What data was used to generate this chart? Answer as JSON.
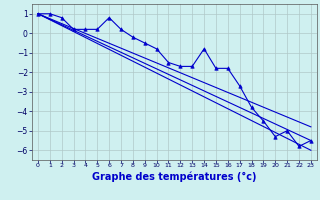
{
  "title": "Graphe des températures (°c)",
  "bg_color": "#cff0f0",
  "grid_color": "#b0c8c8",
  "line_color": "#0000cc",
  "x_values": [
    0,
    1,
    2,
    3,
    4,
    5,
    6,
    7,
    8,
    9,
    10,
    11,
    12,
    13,
    14,
    15,
    16,
    17,
    18,
    19,
    20,
    21,
    22,
    23
  ],
  "y_temp": [
    1.0,
    1.0,
    0.8,
    0.2,
    0.2,
    0.2,
    0.8,
    0.2,
    -0.2,
    -0.5,
    -0.8,
    -1.5,
    -1.7,
    -1.7,
    -0.8,
    -1.8,
    -1.8,
    -2.7,
    -3.8,
    -4.5,
    -5.3,
    -5.0,
    -5.8,
    -5.5
  ],
  "ylim": [
    -6.5,
    1.5
  ],
  "xlim": [
    -0.5,
    23.5
  ],
  "yticks": [
    1,
    0,
    -1,
    -2,
    -3,
    -4,
    -5,
    -6
  ],
  "diag_lines": [
    {
      "x0": 0,
      "y0": 1.0,
      "x1": 23,
      "y1": -6.0
    },
    {
      "x0": 0,
      "y0": 1.0,
      "x1": 23,
      "y1": -5.5
    },
    {
      "x0": 0,
      "y0": 1.0,
      "x1": 23,
      "y1": -4.8
    }
  ]
}
